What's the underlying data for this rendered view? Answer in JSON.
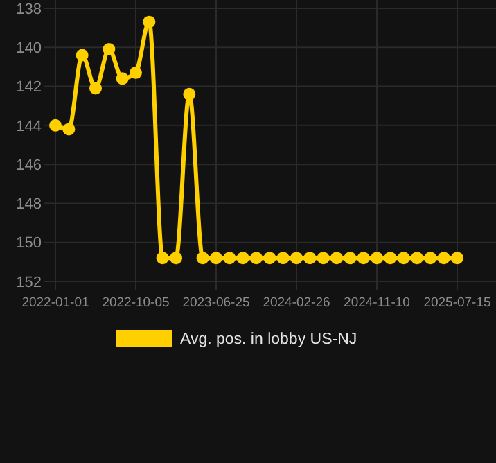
{
  "chart_data": {
    "type": "line",
    "categories": [
      "2022-01-01",
      null,
      null,
      null,
      null,
      null,
      "2022-10-05",
      null,
      null,
      null,
      null,
      null,
      "2023-06-25",
      null,
      null,
      null,
      null,
      null,
      "2024-02-26",
      null,
      null,
      null,
      null,
      null,
      "2024-11-10",
      null,
      null,
      null,
      null,
      null,
      "2025-07-15"
    ],
    "series": [
      {
        "name": "Avg. pos. in lobby US-NJ",
        "color": "#ffd000",
        "values": [
          144.0,
          144.2,
          140.4,
          142.1,
          140.1,
          141.6,
          141.3,
          138.7,
          150.8,
          150.8,
          142.4,
          150.8,
          150.8,
          150.8,
          150.8,
          150.8,
          150.8,
          150.8,
          150.8,
          150.8,
          150.8,
          150.8,
          150.8,
          150.8,
          150.8,
          150.8,
          150.8,
          150.8,
          150.8,
          150.8,
          150.8
        ]
      }
    ],
    "ylim": [
      152,
      138
    ],
    "yticks": [
      138,
      140,
      142,
      144,
      146,
      148,
      150,
      152
    ],
    "grid": true,
    "legend": "bottom",
    "marker": "circle"
  }
}
